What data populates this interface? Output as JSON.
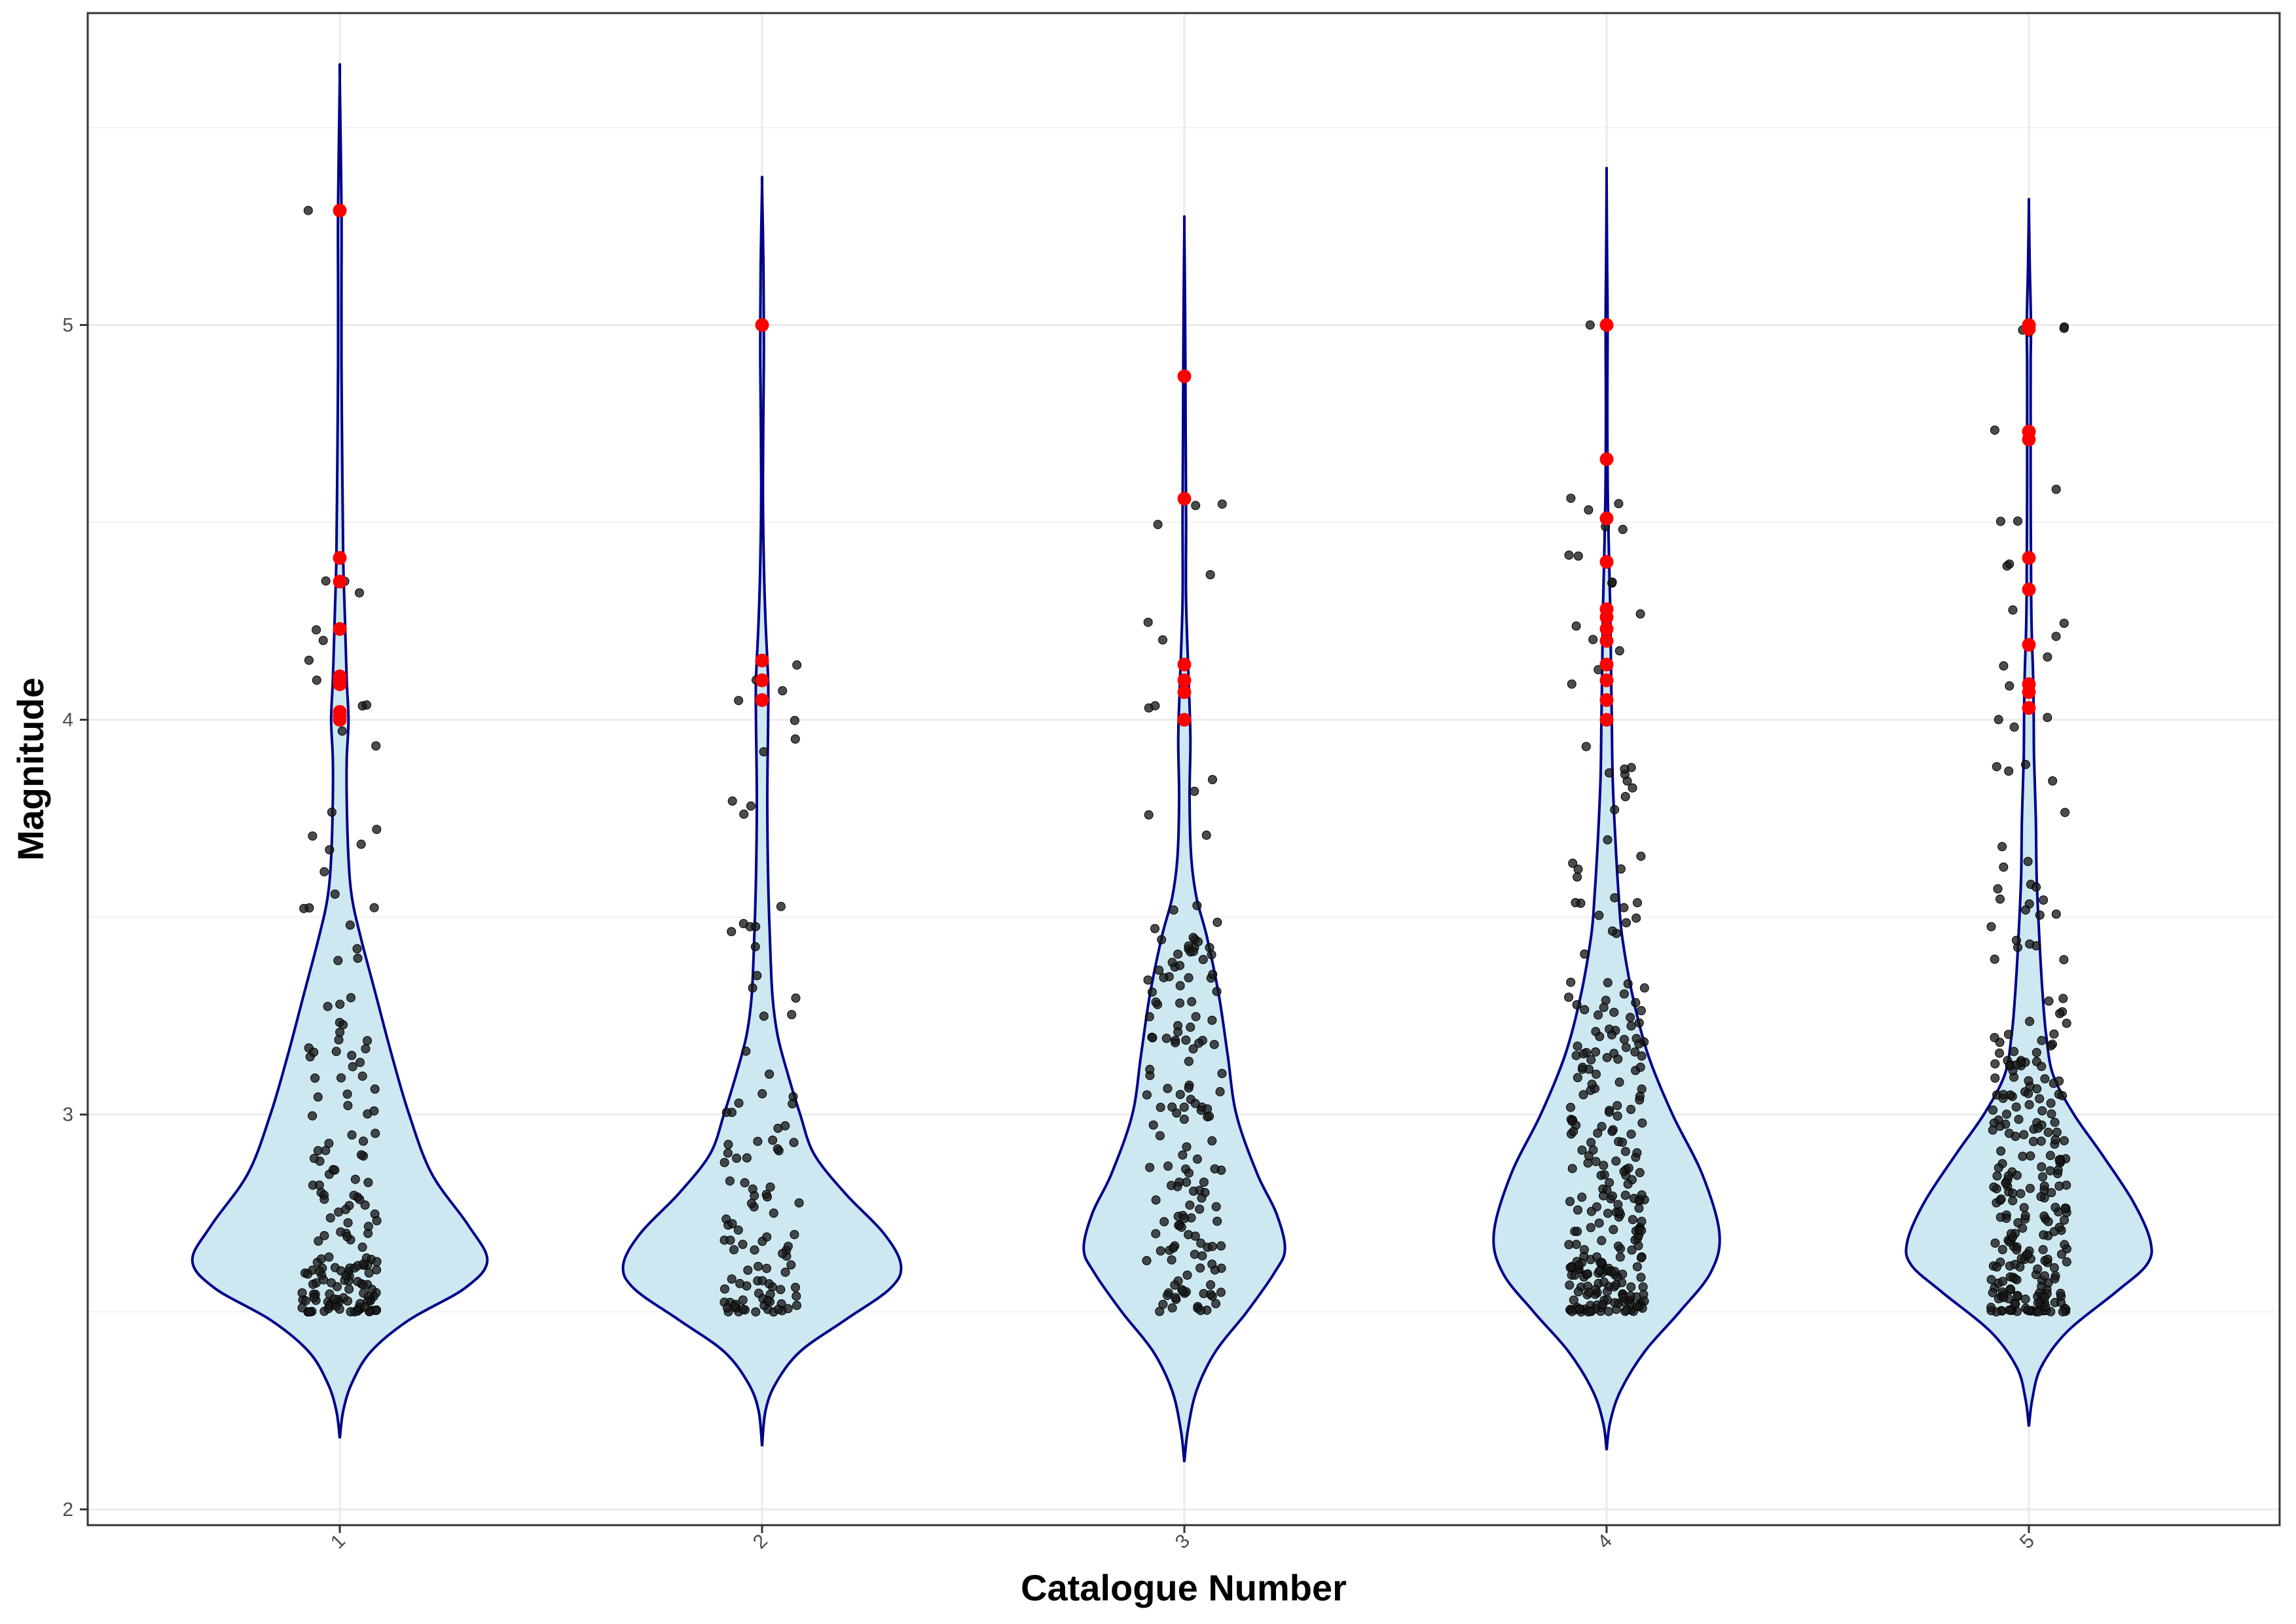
{
  "chart_data": {
    "type": "violin",
    "xlabel": "Catalogue Number",
    "ylabel": "Magnitude",
    "ylim": [
      1.96,
      5.79
    ],
    "yticks": [
      2,
      3,
      4,
      5
    ],
    "grid": true,
    "legend": "none",
    "colors": {
      "violin_fill": "#cde8f0",
      "violin_stroke": "#00008b",
      "point": "#1a1a1a",
      "highlight": "#ff0000",
      "grid": "#ebebeb",
      "panel_border": "#333333"
    },
    "categories": [
      "1",
      "2",
      "3",
      "4",
      "5"
    ],
    "series": [
      {
        "category": "1",
        "range": [
          2.18,
          5.62
        ],
        "density": [
          [
            2.18,
            0.0
          ],
          [
            2.25,
            0.02
          ],
          [
            2.32,
            0.07
          ],
          [
            2.4,
            0.18
          ],
          [
            2.48,
            0.4
          ],
          [
            2.56,
            0.72
          ],
          [
            2.63,
            0.85
          ],
          [
            2.72,
            0.74
          ],
          [
            2.85,
            0.53
          ],
          [
            3.0,
            0.4
          ],
          [
            3.15,
            0.3
          ],
          [
            3.3,
            0.21
          ],
          [
            3.45,
            0.12
          ],
          [
            3.55,
            0.07
          ],
          [
            3.65,
            0.05
          ],
          [
            3.8,
            0.04
          ],
          [
            3.9,
            0.04
          ],
          [
            4.0,
            0.05
          ],
          [
            4.1,
            0.04
          ],
          [
            4.25,
            0.03
          ],
          [
            4.4,
            0.02
          ],
          [
            4.6,
            0.015
          ],
          [
            4.9,
            0.01
          ],
          [
            5.1,
            0.01
          ],
          [
            5.3,
            0.01
          ],
          [
            5.62,
            0.0
          ]
        ],
        "highlights": [
          5.29,
          4.41,
          4.35,
          4.23,
          4.11,
          4.1,
          4.09,
          4.02,
          4.01,
          4.0
        ],
        "points": [
          {
            "n": 150,
            "min": 2.5,
            "max": 3.3,
            "bias": 2.1
          },
          {
            "n": 14,
            "min": 3.3,
            "max": 3.82,
            "bias": 1
          },
          {
            "n": 11,
            "min": 3.88,
            "max": 4.42,
            "bias": 1
          },
          {
            "n": 1,
            "min": 5.29,
            "max": 5.29,
            "bias": 1
          }
        ]
      },
      {
        "category": "2",
        "range": [
          2.16,
          5.35
        ],
        "density": [
          [
            2.16,
            0.0
          ],
          [
            2.25,
            0.02
          ],
          [
            2.32,
            0.08
          ],
          [
            2.4,
            0.22
          ],
          [
            2.48,
            0.48
          ],
          [
            2.56,
            0.74
          ],
          [
            2.62,
            0.8
          ],
          [
            2.7,
            0.7
          ],
          [
            2.8,
            0.48
          ],
          [
            2.9,
            0.3
          ],
          [
            3.0,
            0.22
          ],
          [
            3.1,
            0.15
          ],
          [
            3.2,
            0.09
          ],
          [
            3.3,
            0.06
          ],
          [
            3.45,
            0.045
          ],
          [
            3.6,
            0.035
          ],
          [
            3.8,
            0.03
          ],
          [
            4.0,
            0.035
          ],
          [
            4.1,
            0.035
          ],
          [
            4.25,
            0.02
          ],
          [
            4.4,
            0.01
          ],
          [
            4.6,
            0.005
          ],
          [
            4.9,
            0.01
          ],
          [
            5.0,
            0.01
          ],
          [
            5.15,
            0.008
          ],
          [
            5.35,
            0.0
          ]
        ],
        "highlights": [
          5.0,
          4.15,
          4.1,
          4.05
        ],
        "points": [
          {
            "n": 85,
            "min": 2.5,
            "max": 3.05,
            "bias": 1.9
          },
          {
            "n": 14,
            "min": 3.05,
            "max": 3.6,
            "bias": 1
          },
          {
            "n": 10,
            "min": 3.7,
            "max": 4.15,
            "bias": 1
          },
          {
            "n": 1,
            "min": 5.0,
            "max": 5.0,
            "bias": 1
          }
        ]
      },
      {
        "category": "3",
        "range": [
          2.12,
          5.25
        ],
        "density": [
          [
            2.12,
            0.0
          ],
          [
            2.2,
            0.02
          ],
          [
            2.3,
            0.07
          ],
          [
            2.4,
            0.18
          ],
          [
            2.5,
            0.36
          ],
          [
            2.6,
            0.52
          ],
          [
            2.66,
            0.58
          ],
          [
            2.75,
            0.53
          ],
          [
            2.85,
            0.42
          ],
          [
            3.0,
            0.3
          ],
          [
            3.15,
            0.25
          ],
          [
            3.3,
            0.2
          ],
          [
            3.45,
            0.13
          ],
          [
            3.55,
            0.07
          ],
          [
            3.65,
            0.04
          ],
          [
            3.8,
            0.03
          ],
          [
            3.95,
            0.035
          ],
          [
            4.1,
            0.025
          ],
          [
            4.3,
            0.01
          ],
          [
            4.5,
            0.01
          ],
          [
            4.7,
            0.008
          ],
          [
            4.9,
            0.006
          ],
          [
            5.05,
            0.004
          ],
          [
            5.25,
            0.0
          ]
        ],
        "highlights": [
          4.87,
          4.56,
          4.14,
          4.1,
          4.07,
          4.0
        ],
        "points": [
          {
            "n": 145,
            "min": 2.5,
            "max": 3.45,
            "bias": 1.4
          },
          {
            "n": 8,
            "min": 3.45,
            "max": 3.85,
            "bias": 1
          },
          {
            "n": 8,
            "min": 3.9,
            "max": 4.6,
            "bias": 1
          }
        ]
      },
      {
        "category": "4",
        "range": [
          2.15,
          5.37
        ],
        "density": [
          [
            2.15,
            0.0
          ],
          [
            2.22,
            0.02
          ],
          [
            2.3,
            0.08
          ],
          [
            2.4,
            0.22
          ],
          [
            2.5,
            0.42
          ],
          [
            2.6,
            0.6
          ],
          [
            2.7,
            0.65
          ],
          [
            2.85,
            0.55
          ],
          [
            3.0,
            0.38
          ],
          [
            3.15,
            0.24
          ],
          [
            3.3,
            0.15
          ],
          [
            3.45,
            0.09
          ],
          [
            3.55,
            0.07
          ],
          [
            3.7,
            0.05
          ],
          [
            3.85,
            0.035
          ],
          [
            4.0,
            0.03
          ],
          [
            4.15,
            0.025
          ],
          [
            4.3,
            0.02
          ],
          [
            4.45,
            0.012
          ],
          [
            4.6,
            0.006
          ],
          [
            4.8,
            0.004
          ],
          [
            5.0,
            0.006
          ],
          [
            5.15,
            0.003
          ],
          [
            5.37,
            0.0
          ]
        ],
        "highlights": [
          5.0,
          4.66,
          4.51,
          4.4,
          4.28,
          4.26,
          4.23,
          4.2,
          4.14,
          4.1,
          4.05,
          4.0
        ],
        "points": [
          {
            "n": 235,
            "min": 2.5,
            "max": 3.3,
            "bias": 1.7
          },
          {
            "n": 30,
            "min": 3.3,
            "max": 3.9,
            "bias": 1
          },
          {
            "n": 16,
            "min": 3.92,
            "max": 4.67,
            "bias": 1
          },
          {
            "n": 1,
            "min": 5.0,
            "max": 5.0,
            "bias": 1
          }
        ]
      },
      {
        "category": "5",
        "range": [
          2.21,
          5.3
        ],
        "density": [
          [
            2.21,
            0.0
          ],
          [
            2.28,
            0.02
          ],
          [
            2.36,
            0.07
          ],
          [
            2.45,
            0.22
          ],
          [
            2.55,
            0.5
          ],
          [
            2.62,
            0.68
          ],
          [
            2.68,
            0.7
          ],
          [
            2.78,
            0.6
          ],
          [
            2.9,
            0.42
          ],
          [
            3.0,
            0.26
          ],
          [
            3.1,
            0.14
          ],
          [
            3.2,
            0.1
          ],
          [
            3.3,
            0.08
          ],
          [
            3.45,
            0.06
          ],
          [
            3.6,
            0.045
          ],
          [
            3.75,
            0.04
          ],
          [
            3.9,
            0.03
          ],
          [
            4.0,
            0.028
          ],
          [
            4.1,
            0.025
          ],
          [
            4.25,
            0.015
          ],
          [
            4.4,
            0.012
          ],
          [
            4.6,
            0.01
          ],
          [
            4.75,
            0.01
          ],
          [
            4.9,
            0.01
          ],
          [
            5.0,
            0.012
          ],
          [
            5.15,
            0.005
          ],
          [
            5.3,
            0.0
          ]
        ],
        "highlights": [
          5.0,
          4.99,
          4.73,
          4.71,
          4.41,
          4.33,
          4.19,
          4.09,
          4.07,
          4.03
        ],
        "points": [
          {
            "n": 230,
            "min": 2.5,
            "max": 3.2,
            "bias": 1.6
          },
          {
            "n": 32,
            "min": 3.2,
            "max": 3.9,
            "bias": 1
          },
          {
            "n": 15,
            "min": 3.95,
            "max": 4.75,
            "bias": 1
          },
          {
            "n": 4,
            "min": 4.98,
            "max": 5.0,
            "bias": 1
          }
        ]
      }
    ]
  }
}
